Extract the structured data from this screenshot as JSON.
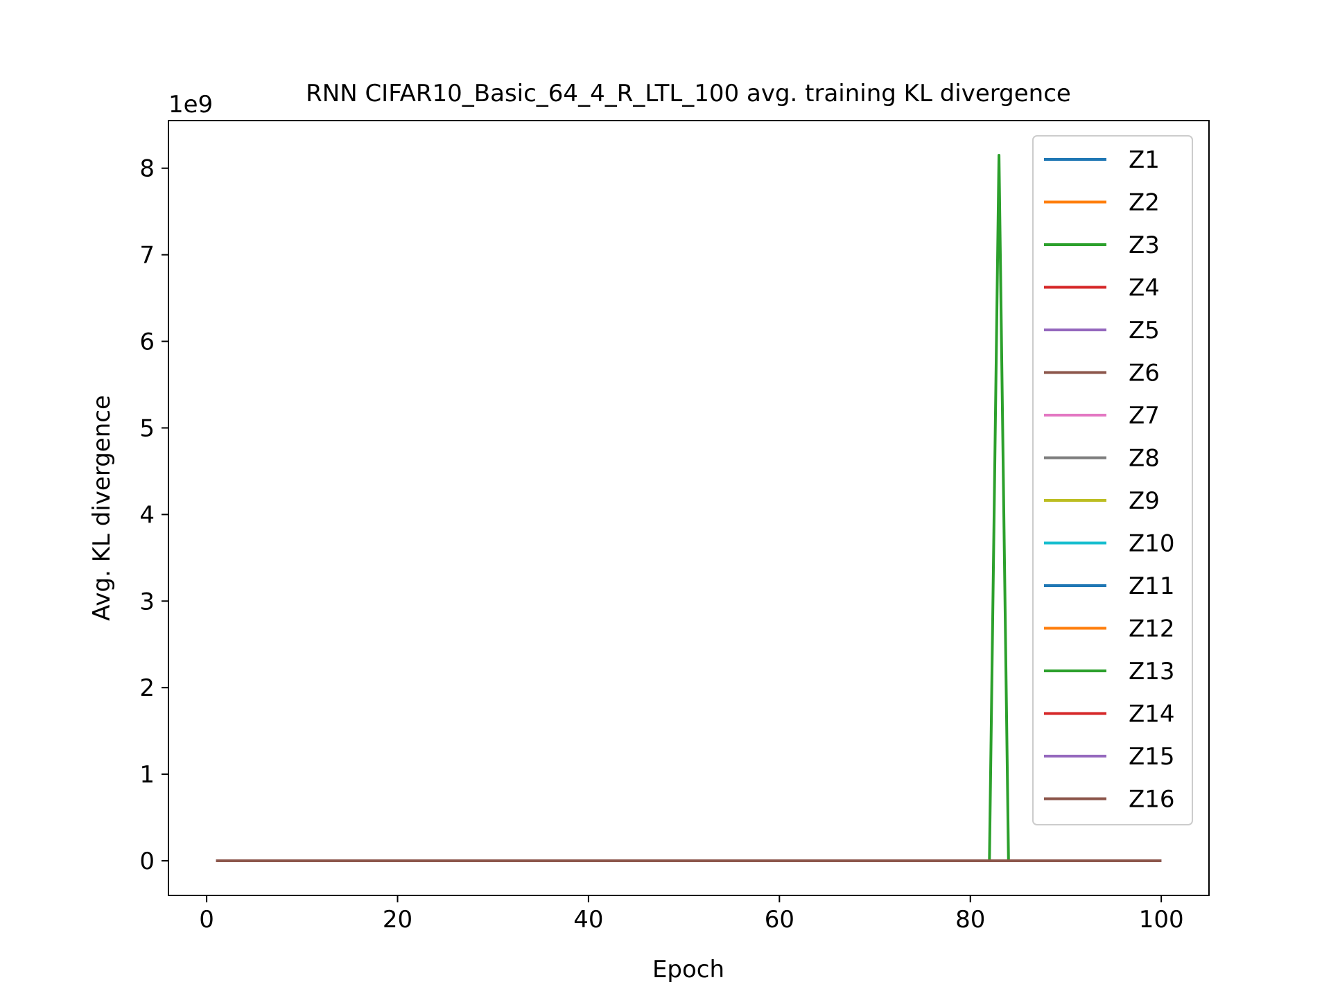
{
  "chart_data": {
    "type": "line",
    "title": "RNN CIFAR10_Basic_64_4_R_LTL_100 avg. training KL divergence",
    "xlabel": "Epoch",
    "ylabel": "Avg. KL divergence",
    "y_offset_label": "1e9",
    "xlim": [
      -4,
      105
    ],
    "ylim": [
      -0.4,
      8.55
    ],
    "xticks": [
      0,
      20,
      40,
      60,
      80,
      100
    ],
    "yticks": [
      0,
      1,
      2,
      3,
      4,
      5,
      6,
      7,
      8
    ],
    "x_range": [
      1,
      100
    ],
    "grid": false,
    "legend_position": "upper right",
    "series": [
      {
        "name": "Z1",
        "color": "#1f77b4",
        "points": [
          [
            1,
            0
          ],
          [
            100,
            0
          ]
        ]
      },
      {
        "name": "Z2",
        "color": "#ff7f0e",
        "points": [
          [
            1,
            0
          ],
          [
            100,
            0
          ]
        ]
      },
      {
        "name": "Z3",
        "color": "#2ca02c",
        "points": [
          [
            1,
            0
          ],
          [
            82,
            0
          ],
          [
            83,
            8.15
          ],
          [
            84,
            0
          ],
          [
            100,
            0
          ]
        ]
      },
      {
        "name": "Z4",
        "color": "#d62728",
        "points": [
          [
            1,
            0
          ],
          [
            100,
            0
          ]
        ]
      },
      {
        "name": "Z5",
        "color": "#9467bd",
        "points": [
          [
            1,
            0
          ],
          [
            100,
            0
          ]
        ]
      },
      {
        "name": "Z6",
        "color": "#8c564b",
        "points": [
          [
            1,
            0
          ],
          [
            100,
            0
          ]
        ]
      },
      {
        "name": "Z7",
        "color": "#e377c2",
        "points": [
          [
            1,
            0
          ],
          [
            100,
            0
          ]
        ]
      },
      {
        "name": "Z8",
        "color": "#7f7f7f",
        "points": [
          [
            1,
            0
          ],
          [
            100,
            0
          ]
        ]
      },
      {
        "name": "Z9",
        "color": "#bcbd22",
        "points": [
          [
            1,
            0
          ],
          [
            100,
            0
          ]
        ]
      },
      {
        "name": "Z10",
        "color": "#17becf",
        "points": [
          [
            1,
            0
          ],
          [
            100,
            0
          ]
        ]
      },
      {
        "name": "Z11",
        "color": "#1f77b4",
        "points": [
          [
            1,
            0
          ],
          [
            100,
            0
          ]
        ]
      },
      {
        "name": "Z12",
        "color": "#ff7f0e",
        "points": [
          [
            1,
            0
          ],
          [
            100,
            0
          ]
        ]
      },
      {
        "name": "Z13",
        "color": "#2ca02c",
        "points": [
          [
            1,
            0
          ],
          [
            100,
            0
          ]
        ]
      },
      {
        "name": "Z14",
        "color": "#d62728",
        "points": [
          [
            1,
            0
          ],
          [
            100,
            0
          ]
        ]
      },
      {
        "name": "Z15",
        "color": "#9467bd",
        "points": [
          [
            1,
            0
          ],
          [
            100,
            0
          ]
        ]
      },
      {
        "name": "Z16",
        "color": "#8c564b",
        "points": [
          [
            1,
            0
          ],
          [
            100,
            0
          ]
        ]
      }
    ]
  }
}
